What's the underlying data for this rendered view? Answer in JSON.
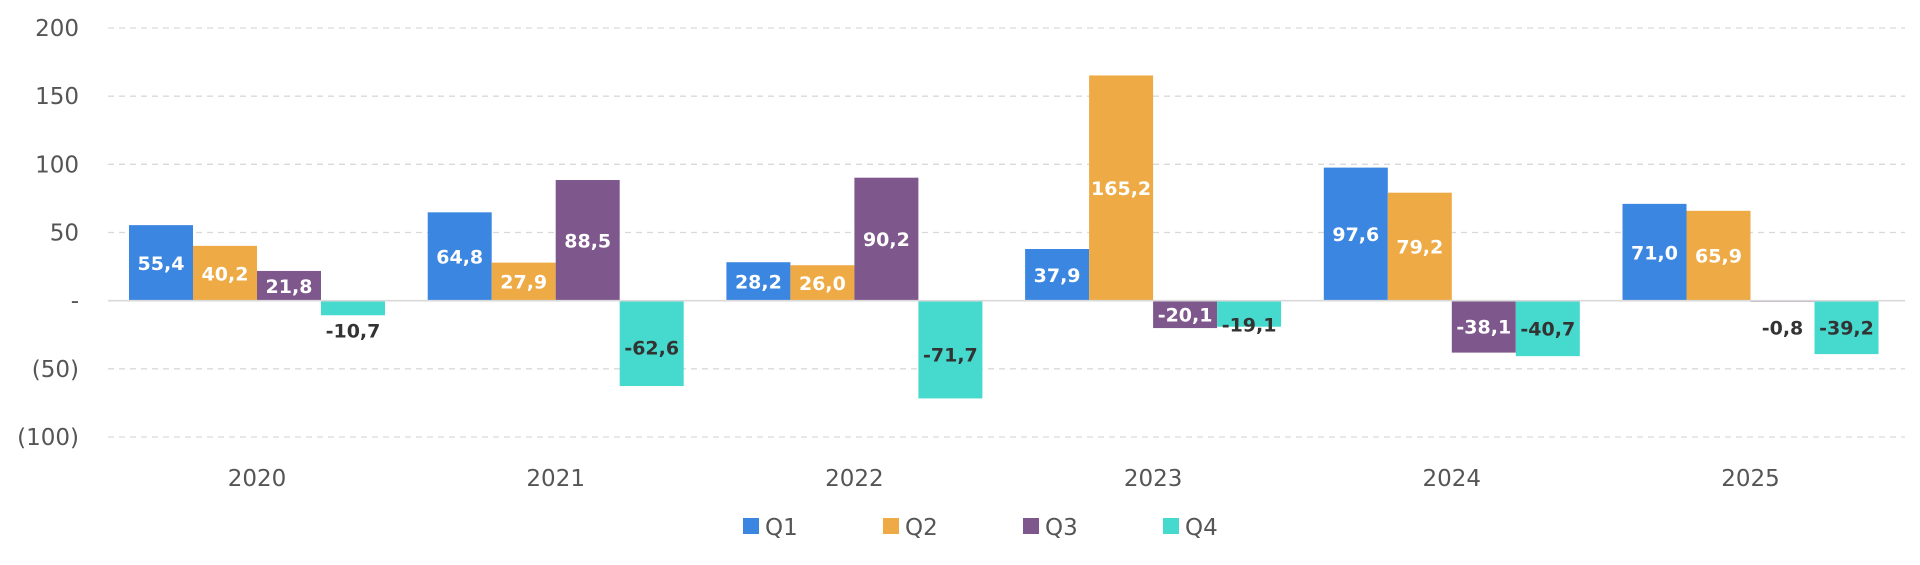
{
  "chart_data": {
    "type": "bar",
    "title": "",
    "xlabel": "",
    "ylabel": "",
    "categories": [
      "2020",
      "2021",
      "2022",
      "2023",
      "2024",
      "2025"
    ],
    "series": [
      {
        "name": "Q1",
        "color": "#3b86e0",
        "values": [
          55.4,
          64.8,
          28.2,
          37.9,
          97.6,
          71.0
        ],
        "labels": [
          "55,4",
          "64,8",
          "28,2",
          "37,9",
          "97,6",
          "71,0"
        ]
      },
      {
        "name": "Q2",
        "color": "#eeaa45",
        "values": [
          40.2,
          27.9,
          26.0,
          165.2,
          79.2,
          65.9
        ],
        "labels": [
          "40,2",
          "27,9",
          "26,0",
          "165,2",
          "79,2",
          "65,9"
        ]
      },
      {
        "name": "Q3",
        "color": "#7e578c",
        "values": [
          21.8,
          88.5,
          90.2,
          -20.1,
          -38.1,
          -0.8
        ],
        "labels": [
          "21,8",
          "88,5",
          "90,2",
          "-20,1",
          "-38,1",
          "-0,8"
        ]
      },
      {
        "name": "Q4",
        "color": "#46d9ce",
        "values": [
          -10.7,
          -62.6,
          -71.7,
          -19.1,
          -40.7,
          -39.2
        ],
        "labels": [
          "-10,7",
          "-62,6",
          "-71,7",
          "-19,1",
          "-40,7",
          "-39,2"
        ]
      }
    ],
    "y_ticks": [
      200,
      150,
      100,
      50,
      0,
      -50,
      -100
    ],
    "y_tick_labels": [
      "200",
      "150",
      "100",
      "50",
      "-",
      "(50)",
      "(100)"
    ],
    "ylim": [
      -100,
      200
    ],
    "grid": true,
    "legend_position": "bottom-center"
  },
  "colors": {
    "label_light": "#ffffff",
    "label_dark": "#333333"
  }
}
